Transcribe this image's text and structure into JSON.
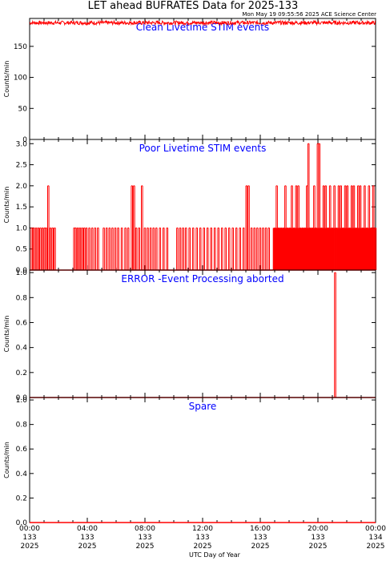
{
  "title": "LET ahead BUFRATES Data for 2025-133",
  "timestamp": "Mon May 19 09:55:56 2025 ACE Science Center",
  "xlabel": "UTC Day of Year",
  "chart_data": [
    {
      "type": "line",
      "title": "Clean Livetime STIM events",
      "ylabel": "Counts/min",
      "ylim": [
        0,
        195
      ],
      "yticks": [
        0,
        50,
        100,
        150
      ],
      "color": "#ff0000",
      "series": [
        {
          "mode": "noisy-level",
          "approx_level": 188,
          "noise_amplitude": 3,
          "x": [
            0,
            24
          ]
        }
      ]
    },
    {
      "type": "line",
      "title": "Poor Livetime STIM events",
      "ylabel": "Counts/min",
      "ylim": [
        0,
        3.1
      ],
      "yticks": [
        0.0,
        0.5,
        1.0,
        1.5,
        2.0,
        2.5,
        3.0
      ],
      "color": "#ff0000",
      "baseline": 0,
      "spikes": [
        [
          0.1,
          1
        ],
        [
          0.25,
          1
        ],
        [
          0.4,
          1
        ],
        [
          0.55,
          1
        ],
        [
          0.7,
          1
        ],
        [
          0.85,
          1
        ],
        [
          1.0,
          1
        ],
        [
          1.1,
          1
        ],
        [
          1.25,
          2
        ],
        [
          1.4,
          1
        ],
        [
          1.55,
          1
        ],
        [
          1.7,
          1
        ],
        [
          3.05,
          1
        ],
        [
          3.15,
          1
        ],
        [
          3.3,
          1
        ],
        [
          3.45,
          1
        ],
        [
          3.6,
          1
        ],
        [
          3.75,
          1
        ],
        [
          3.9,
          1
        ],
        [
          4.1,
          1
        ],
        [
          4.3,
          1
        ],
        [
          4.5,
          1
        ],
        [
          4.7,
          1
        ],
        [
          5.1,
          1
        ],
        [
          5.3,
          1
        ],
        [
          5.5,
          1
        ],
        [
          5.7,
          1
        ],
        [
          5.9,
          1
        ],
        [
          6.1,
          1
        ],
        [
          6.35,
          1
        ],
        [
          6.6,
          1
        ],
        [
          6.8,
          1
        ],
        [
          7.05,
          2
        ],
        [
          7.2,
          2
        ],
        [
          7.35,
          1
        ],
        [
          7.55,
          1
        ],
        [
          7.75,
          2
        ],
        [
          7.95,
          1
        ],
        [
          8.15,
          1
        ],
        [
          8.35,
          1
        ],
        [
          8.55,
          1
        ],
        [
          8.75,
          1
        ],
        [
          9.0,
          1
        ],
        [
          9.25,
          1
        ],
        [
          9.5,
          1
        ],
        [
          10.2,
          1
        ],
        [
          10.4,
          1
        ],
        [
          10.6,
          1
        ],
        [
          10.8,
          1
        ],
        [
          11.05,
          1
        ],
        [
          11.3,
          1
        ],
        [
          11.55,
          1
        ],
        [
          11.8,
          1
        ],
        [
          12.05,
          1
        ],
        [
          12.3,
          1
        ],
        [
          12.55,
          1
        ],
        [
          12.8,
          1
        ],
        [
          13.05,
          1
        ],
        [
          13.3,
          1
        ],
        [
          13.55,
          1
        ],
        [
          13.8,
          1
        ],
        [
          14.05,
          1
        ],
        [
          14.3,
          1
        ],
        [
          14.55,
          1
        ],
        [
          14.8,
          1
        ],
        [
          15.0,
          2
        ],
        [
          15.15,
          2
        ],
        [
          15.35,
          1
        ],
        [
          15.55,
          1
        ],
        [
          15.75,
          1
        ],
        [
          15.95,
          1
        ],
        [
          16.15,
          1
        ],
        [
          16.35,
          1
        ],
        [
          16.55,
          1
        ],
        [
          16.95,
          1
        ],
        [
          17.1,
          2
        ],
        [
          17.25,
          1
        ],
        [
          17.4,
          1
        ],
        [
          17.55,
          1
        ],
        [
          17.7,
          2
        ],
        [
          17.85,
          1
        ],
        [
          18.0,
          1
        ],
        [
          18.15,
          2
        ],
        [
          18.3,
          1
        ],
        [
          18.45,
          2
        ],
        [
          18.6,
          2
        ],
        [
          18.75,
          1
        ],
        [
          18.9,
          1
        ],
        [
          19.05,
          1
        ],
        [
          19.2,
          2
        ],
        [
          19.3,
          3
        ],
        [
          19.4,
          1
        ],
        [
          19.55,
          1
        ],
        [
          19.7,
          2
        ],
        [
          19.8,
          1
        ],
        [
          19.95,
          3
        ],
        [
          20.05,
          3
        ],
        [
          20.2,
          1
        ],
        [
          20.35,
          2
        ],
        [
          20.5,
          2
        ],
        [
          20.65,
          1
        ],
        [
          20.8,
          2
        ],
        [
          20.95,
          1
        ],
        [
          21.1,
          2
        ],
        [
          21.25,
          1
        ],
        [
          21.4,
          2
        ],
        [
          21.55,
          2
        ],
        [
          21.7,
          1
        ],
        [
          21.85,
          2
        ],
        [
          22.0,
          2
        ],
        [
          22.15,
          1
        ],
        [
          22.3,
          2
        ],
        [
          22.45,
          2
        ],
        [
          22.6,
          1
        ],
        [
          22.75,
          2
        ],
        [
          22.9,
          2
        ],
        [
          23.05,
          1
        ],
        [
          23.2,
          2
        ],
        [
          23.35,
          1
        ],
        [
          23.5,
          2
        ],
        [
          23.65,
          1
        ],
        [
          23.8,
          2
        ],
        [
          23.95,
          1
        ]
      ],
      "dense_ranges": [
        [
          16.9,
          24.0
        ]
      ]
    },
    {
      "type": "line",
      "title": "ERROR -Event Processing aborted",
      "ylabel": "Counts/min",
      "ylim": [
        0,
        1.02
      ],
      "yticks": [
        0.0,
        0.2,
        0.4,
        0.6,
        0.8,
        1.0
      ],
      "color": "#ff0000",
      "baseline": 0,
      "spikes": [
        [
          21.15,
          1
        ]
      ]
    },
    {
      "type": "line",
      "title": "Spare",
      "ylabel": "Counts/min",
      "ylim": [
        0,
        1.02
      ],
      "yticks": [
        0.0,
        0.2,
        0.4,
        0.6,
        0.8,
        1.0
      ],
      "color": "#ff0000",
      "baseline": 0,
      "spikes": []
    }
  ],
  "x_axis": {
    "range": [
      0,
      24
    ],
    "ticks": [
      {
        "pos": 0,
        "time": "00:00",
        "doy": "133",
        "year": "2025"
      },
      {
        "pos": 4,
        "time": "04:00",
        "doy": "133",
        "year": "2025"
      },
      {
        "pos": 8,
        "time": "08:00",
        "doy": "133",
        "year": "2025"
      },
      {
        "pos": 12,
        "time": "12:00",
        "doy": "133",
        "year": "2025"
      },
      {
        "pos": 16,
        "time": "16:00",
        "doy": "133",
        "year": "2025"
      },
      {
        "pos": 20,
        "time": "20:00",
        "doy": "133",
        "year": "2025"
      },
      {
        "pos": 24,
        "time": "00:00",
        "doy": "134",
        "year": "2025"
      }
    ]
  }
}
